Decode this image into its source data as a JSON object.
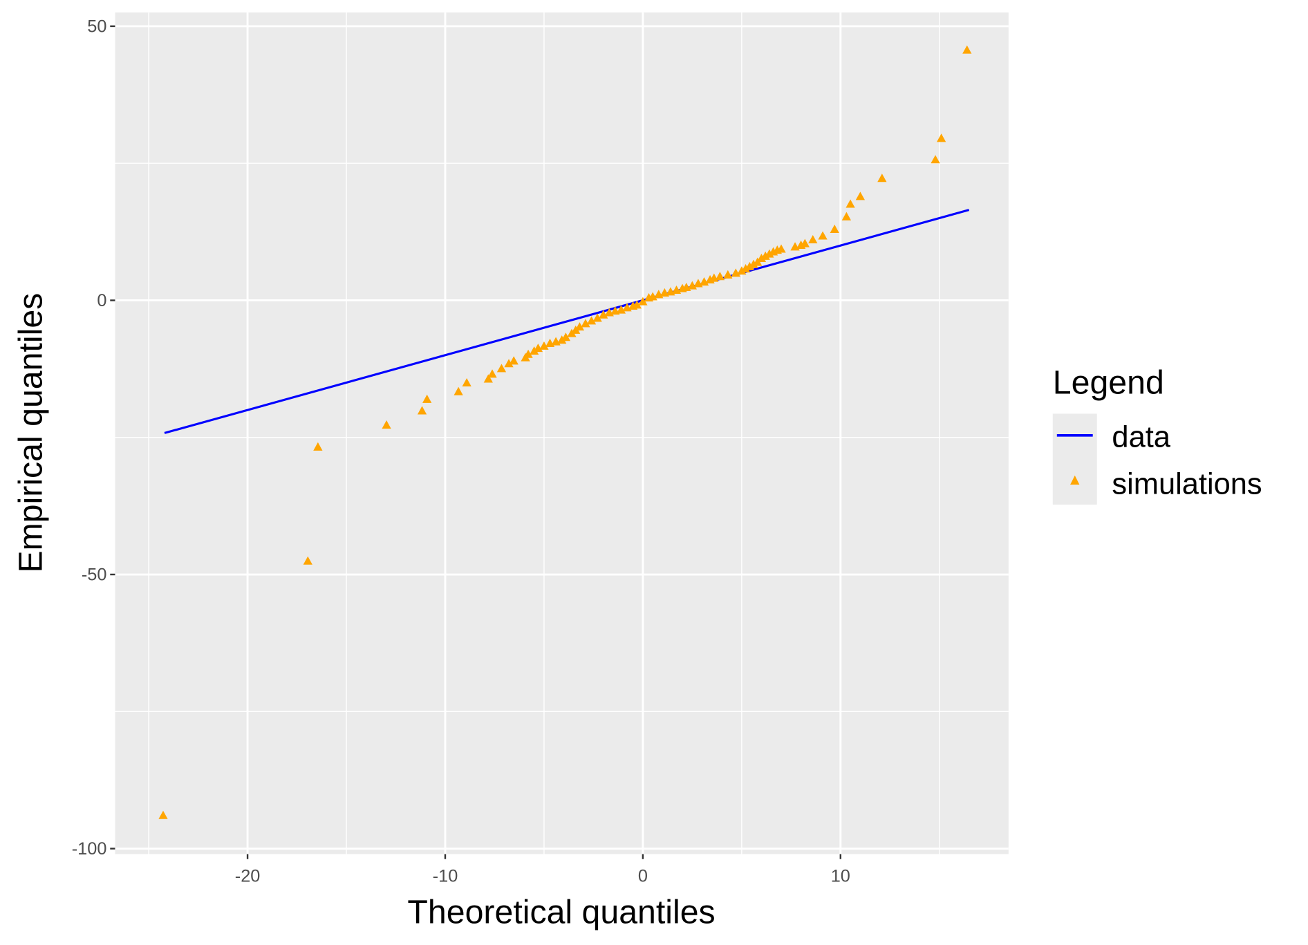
{
  "chart_data": {
    "type": "scatter",
    "title": "",
    "xlabel": "Theoretical quantiles",
    "ylabel": "Empirical quantiles",
    "xlim": [
      -26.7,
      18.5
    ],
    "ylim": [
      -101,
      52.5
    ],
    "xticks": [
      -20,
      -10,
      0,
      10
    ],
    "yticks": [
      50,
      0,
      -50,
      -100
    ],
    "xminor": [
      -25,
      -15,
      -5,
      5,
      15
    ],
    "yminor": [
      25,
      -25,
      -75
    ],
    "grid": true,
    "legend": {
      "title": "Legend",
      "placement": "right",
      "entries": [
        {
          "label": "data",
          "type": "line",
          "color": "#0000ff"
        },
        {
          "label": "simulations",
          "type": "triangle",
          "color": "#ffa500"
        }
      ]
    },
    "series": [
      {
        "name": "data",
        "type": "line",
        "color": "#0000ff",
        "x": [
          -24.2,
          16.5
        ],
        "y": [
          -24.2,
          16.5
        ]
      },
      {
        "name": "simulations",
        "type": "scatter",
        "marker": "triangle",
        "color": "#ffa500",
        "x": [
          -24.27,
          -16.95,
          -16.44,
          -12.97,
          -11.17,
          -10.92,
          -9.33,
          -8.91,
          -7.82,
          -7.62,
          -7.15,
          -6.78,
          -6.53,
          -5.94,
          -5.8,
          -5.5,
          -5.3,
          -5.0,
          -4.7,
          -4.4,
          -4.1,
          -3.9,
          -3.6,
          -3.4,
          -3.2,
          -2.9,
          -2.6,
          -2.3,
          -2.0,
          -1.7,
          -1.4,
          -1.1,
          -0.8,
          -0.5,
          -0.3,
          0.0,
          0.3,
          0.5,
          0.8,
          1.1,
          1.4,
          1.7,
          2.0,
          2.2,
          2.5,
          2.8,
          3.1,
          3.4,
          3.6,
          3.9,
          4.3,
          4.7,
          5.0,
          5.2,
          5.4,
          5.6,
          5.8,
          6.0,
          6.2,
          6.4,
          6.6,
          6.8,
          7.0,
          7.7,
          8.0,
          8.2,
          8.6,
          9.1,
          9.7,
          10.3,
          10.5,
          11.0,
          12.1,
          14.8,
          15.1,
          16.4
        ],
        "y": [
          -94.0,
          -47.6,
          -26.8,
          -22.8,
          -20.2,
          -18.1,
          -16.7,
          -15.1,
          -14.4,
          -13.5,
          -12.5,
          -11.6,
          -11.1,
          -10.5,
          -9.9,
          -9.3,
          -8.8,
          -8.4,
          -7.9,
          -7.6,
          -7.3,
          -6.8,
          -6.1,
          -5.5,
          -4.9,
          -4.3,
          -3.8,
          -3.3,
          -2.7,
          -2.3,
          -2.0,
          -1.8,
          -1.4,
          -1.1,
          -0.9,
          -0.3,
          0.4,
          0.6,
          1.0,
          1.3,
          1.5,
          1.8,
          2.1,
          2.3,
          2.6,
          3.0,
          3.3,
          3.7,
          4.0,
          4.3,
          4.6,
          4.9,
          5.3,
          5.7,
          6.1,
          6.5,
          6.9,
          7.6,
          8.0,
          8.4,
          8.8,
          9.1,
          9.3,
          9.7,
          10.0,
          10.3,
          11.0,
          11.7,
          12.9,
          15.2,
          17.5,
          18.9,
          22.2,
          25.6,
          29.5,
          45.6
        ]
      }
    ]
  }
}
